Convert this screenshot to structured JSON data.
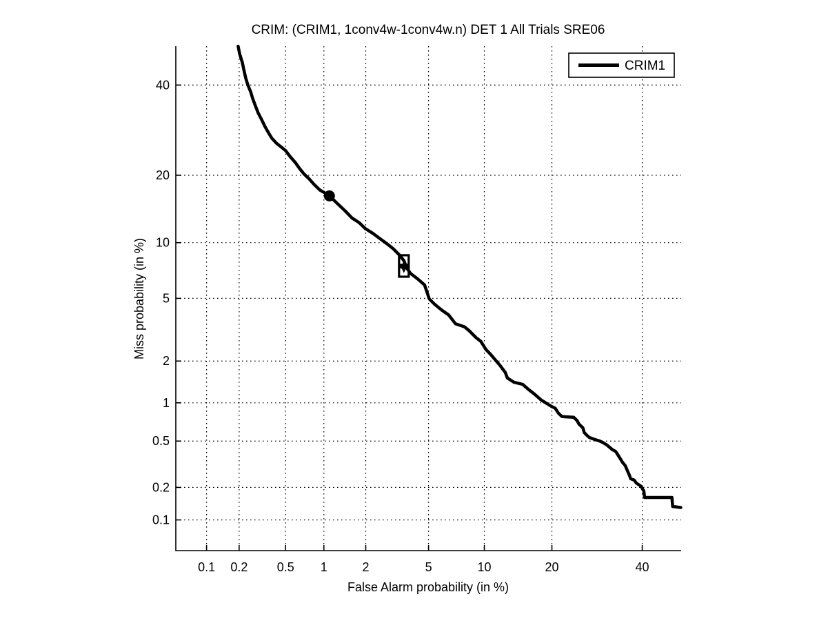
{
  "colors": {
    "foreground": "#000000",
    "background": "#ffffff"
  },
  "chart_data": {
    "type": "line",
    "variant": "DET curve (probit scale on both axes)",
    "title": "CRIM: (CRIM1, 1conv4w-1conv4w.n) DET 1 All Trials SRE06",
    "xlabel": "False Alarm probability (in %)",
    "ylabel": "Miss probability (in %)",
    "axis_scale": "probit",
    "xlim": [
      0.05,
      50
    ],
    "ylim": [
      0.05,
      50
    ],
    "x_tick_values": [
      0.1,
      0.2,
      0.5,
      1,
      2,
      5,
      10,
      20,
      40
    ],
    "x_tick_labels": [
      "0.1",
      "0.2",
      "0.5",
      "1",
      "2",
      "5",
      "10",
      "20",
      "40"
    ],
    "y_tick_values": [
      0.1,
      0.2,
      0.5,
      1,
      2,
      5,
      10,
      20,
      40
    ],
    "y_tick_labels": [
      "0.1",
      "0.2",
      "0.5",
      "1",
      "2",
      "5",
      "10",
      "20",
      "40"
    ],
    "grid": "dotted",
    "legend": {
      "position": "top-right",
      "entries": [
        {
          "label": "CRIM1",
          "color": "#000000"
        }
      ]
    },
    "series": [
      {
        "name": "CRIM1",
        "color": "#000000",
        "line_width": 4.5,
        "points": [
          [
            0.196,
            50
          ],
          [
            0.202,
            48.0
          ],
          [
            0.213,
            45.9
          ],
          [
            0.222,
            43.5
          ],
          [
            0.229,
            41.8
          ],
          [
            0.239,
            40.0
          ],
          [
            0.253,
            38.3
          ],
          [
            0.264,
            36.6
          ],
          [
            0.278,
            34.9
          ],
          [
            0.294,
            33.2
          ],
          [
            0.315,
            31.6
          ],
          [
            0.337,
            30.0
          ],
          [
            0.361,
            28.6
          ],
          [
            0.385,
            27.4
          ],
          [
            0.422,
            26.3
          ],
          [
            0.463,
            25.5
          ],
          [
            0.5,
            24.8
          ],
          [
            0.548,
            23.5
          ],
          [
            0.6,
            22.4
          ],
          [
            0.646,
            21.3
          ],
          [
            0.705,
            20.2
          ],
          [
            0.767,
            19.4
          ],
          [
            0.847,
            18.3
          ],
          [
            0.934,
            17.4
          ],
          [
            1.04,
            16.8
          ],
          [
            1.1,
            16.45
          ],
          [
            1.28,
            15.1
          ],
          [
            1.44,
            14.1
          ],
          [
            1.61,
            13.1
          ],
          [
            1.8,
            12.5
          ],
          [
            1.99,
            11.7
          ],
          [
            2.24,
            11.1
          ],
          [
            2.48,
            10.5
          ],
          [
            2.76,
            9.9
          ],
          [
            3.05,
            9.3
          ],
          [
            3.31,
            8.7
          ],
          [
            3.55,
            8.1
          ],
          [
            3.7,
            7.4
          ],
          [
            3.91,
            6.9
          ],
          [
            4.31,
            6.45
          ],
          [
            4.74,
            5.96
          ],
          [
            5.05,
            4.96
          ],
          [
            5.44,
            4.6
          ],
          [
            5.95,
            4.26
          ],
          [
            6.5,
            3.98
          ],
          [
            7.09,
            3.51
          ],
          [
            7.91,
            3.36
          ],
          [
            8.38,
            3.17
          ],
          [
            9.1,
            2.86
          ],
          [
            9.6,
            2.71
          ],
          [
            10.2,
            2.39
          ],
          [
            10.8,
            2.2
          ],
          [
            11.3,
            2.04
          ],
          [
            11.9,
            1.87
          ],
          [
            12.6,
            1.67
          ],
          [
            12.9,
            1.52
          ],
          [
            13.8,
            1.42
          ],
          [
            15.1,
            1.37
          ],
          [
            15.9,
            1.27
          ],
          [
            17.0,
            1.16
          ],
          [
            18.1,
            1.05
          ],
          [
            19.9,
            0.94
          ],
          [
            20.6,
            0.91
          ],
          [
            21.2,
            0.835
          ],
          [
            21.9,
            0.785
          ],
          [
            24.2,
            0.775
          ],
          [
            24.9,
            0.73
          ],
          [
            25.3,
            0.685
          ],
          [
            26.1,
            0.64
          ],
          [
            26.4,
            0.587
          ],
          [
            26.8,
            0.565
          ],
          [
            27.5,
            0.535
          ],
          [
            28.7,
            0.515
          ],
          [
            29.8,
            0.5
          ],
          [
            30.6,
            0.485
          ],
          [
            31.4,
            0.465
          ],
          [
            32.2,
            0.44
          ],
          [
            32.7,
            0.425
          ],
          [
            33.5,
            0.41
          ],
          [
            34.1,
            0.38
          ],
          [
            34.6,
            0.356
          ],
          [
            35.1,
            0.333
          ],
          [
            35.8,
            0.31
          ],
          [
            36.3,
            0.282
          ],
          [
            36.8,
            0.257
          ],
          [
            37.1,
            0.239
          ],
          [
            38.0,
            0.232
          ],
          [
            38.5,
            0.219
          ],
          [
            39.7,
            0.205
          ],
          [
            40.4,
            0.185
          ],
          [
            40.6,
            0.162
          ],
          [
            47.6,
            0.162
          ],
          [
            47.8,
            0.134
          ],
          [
            49.9,
            0.131
          ]
        ]
      }
    ],
    "markers": [
      {
        "shape": "filled-circle",
        "x": 1.1,
        "y": 16.45
      },
      {
        "shape": "open-square",
        "x": 3.55,
        "y": 8.15
      },
      {
        "shape": "filled-star",
        "x": 3.55,
        "y": 7.5
      },
      {
        "shape": "open-square",
        "x": 3.55,
        "y": 7.05
      }
    ]
  }
}
